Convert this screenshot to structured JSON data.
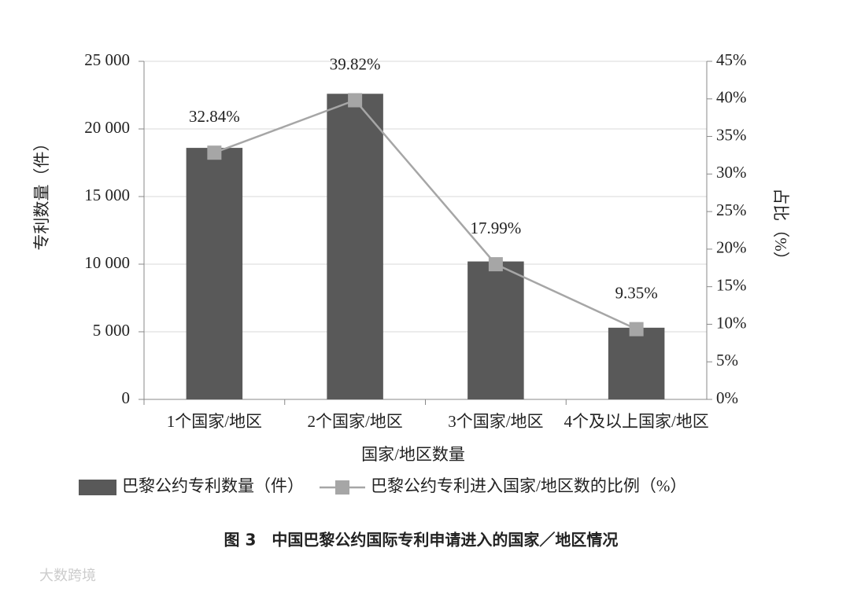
{
  "chart_data": {
    "type": "combo",
    "caption": "图 3　中国巴黎公约国际专利申请进入的国家／地区情况",
    "x_label": "国家/地区数量",
    "y_label": "专利数量（件）",
    "y2_label": "占比（%）",
    "watermark": "大数跨境",
    "categories": [
      "1个国家/地区",
      "2个国家/地区",
      "3个国家/地区",
      "4个及以上国家/地区"
    ],
    "series": [
      {
        "name": "巴黎公约专利数量（件）",
        "type": "bar",
        "color": "#595959",
        "values": [
          18600,
          22600,
          10200,
          5300
        ]
      },
      {
        "name": "巴黎公约专利进入国家/地区数的比例（%）",
        "type": "line",
        "axis": "y2",
        "color": "#a6a6a6",
        "values": [
          32.84,
          39.82,
          17.99,
          9.35
        ],
        "value_labels": [
          "32.84%",
          "39.82%",
          "17.99%",
          "9.35%"
        ]
      }
    ],
    "ylim": [
      0,
      25000
    ],
    "yticks": [
      {
        "value": 0,
        "label": "0"
      },
      {
        "value": 5000,
        "label": "5 000"
      },
      {
        "value": 10000,
        "label": "10 000"
      },
      {
        "value": 15000,
        "label": "15 000"
      },
      {
        "value": 20000,
        "label": "20 000"
      },
      {
        "value": 25000,
        "label": "25 000"
      }
    ],
    "y2lim": [
      0,
      45
    ],
    "y2ticks": [
      {
        "value": 0,
        "label": "0%"
      },
      {
        "value": 5,
        "label": "5%"
      },
      {
        "value": 10,
        "label": "10%"
      },
      {
        "value": 15,
        "label": "15%"
      },
      {
        "value": 20,
        "label": "20%"
      },
      {
        "value": 25,
        "label": "25%"
      },
      {
        "value": 30,
        "label": "30%"
      },
      {
        "value": 35,
        "label": "35%"
      },
      {
        "value": 40,
        "label": "40%"
      },
      {
        "value": 45,
        "label": "45%"
      }
    ],
    "grid": true
  }
}
